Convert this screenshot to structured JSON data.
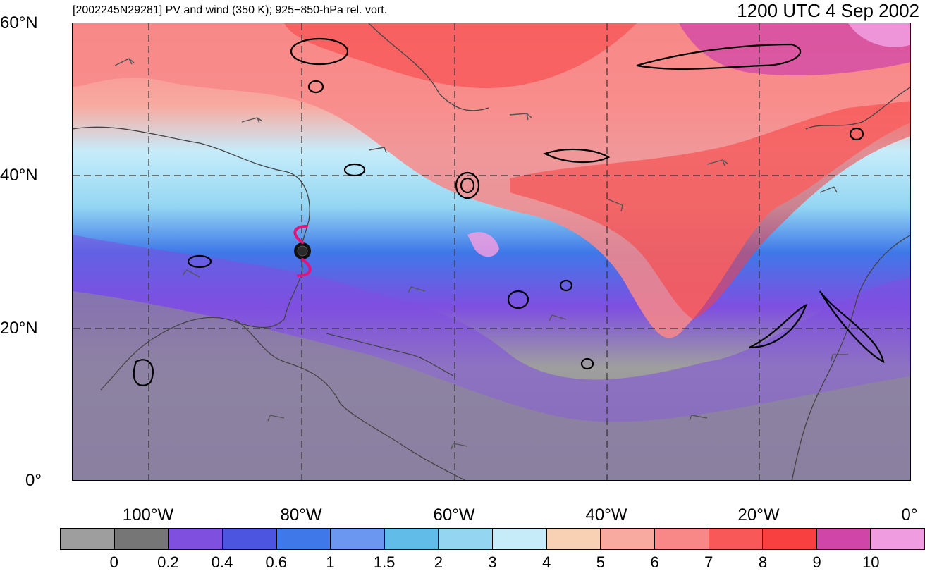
{
  "header": {
    "left_title": "[2002245N29281] PV and wind (350 K); 925−850-hPa rel. vort.",
    "right_title": "1200 UTC 4 Sep 2002"
  },
  "axes": {
    "lat_labels": [
      "60°N",
      "40°N",
      "20°N",
      "0°"
    ],
    "lon_labels": [
      "100°W",
      "80°W",
      "60°W",
      "40°W",
      "20°W",
      "0°"
    ]
  },
  "map": {
    "storm_marker_icon": "tropical-cyclone-icon",
    "storm_color": "#e0157a"
  },
  "colorbar": {
    "labels": [
      "0",
      "0.2",
      "0.4",
      "0.6",
      "1",
      "1.5",
      "2",
      "3",
      "4",
      "5",
      "6",
      "7",
      "8",
      "9",
      "10"
    ],
    "colors": [
      "#9e9e9e",
      "#767676",
      "#7f4fe0",
      "#4b55e0",
      "#3f78e8",
      "#6b97f0",
      "#62bce8",
      "#94d6f2",
      "#c6ecfa",
      "#f8d0b4",
      "#f8aaa0",
      "#f88888",
      "#f85858",
      "#f84040",
      "#d046a8",
      "#f09ce0"
    ]
  }
}
